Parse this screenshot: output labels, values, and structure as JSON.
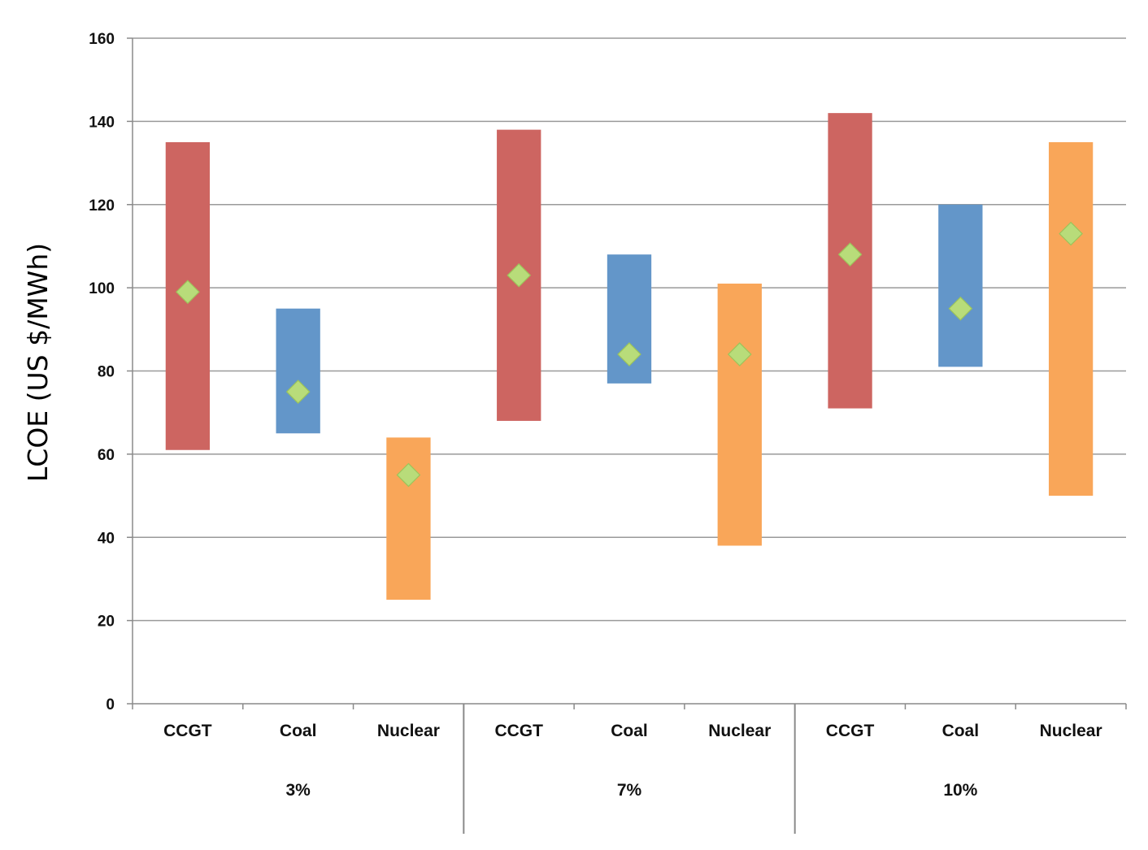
{
  "chart_data": {
    "type": "floating-bar",
    "title": "",
    "xlabel": "",
    "ylabel": "LCOE (US $/MWh)",
    "ylim": [
      0,
      160
    ],
    "yticks": [
      0,
      20,
      40,
      60,
      80,
      100,
      120,
      140,
      160
    ],
    "grid": true,
    "legend": "none",
    "groups": [
      {
        "label": "3%",
        "bars": [
          {
            "category": "CCGT",
            "low": 61,
            "high": 135,
            "median": 99,
            "color": "#cd6561"
          },
          {
            "category": "Coal",
            "low": 65,
            "high": 95,
            "median": 75,
            "color": "#6396c9"
          },
          {
            "category": "Nuclear",
            "low": 25,
            "high": 64,
            "median": 55,
            "color": "#f9a659"
          }
        ]
      },
      {
        "label": "7%",
        "bars": [
          {
            "category": "CCGT",
            "low": 68,
            "high": 138,
            "median": 103,
            "color": "#cd6561"
          },
          {
            "category": "Coal",
            "low": 77,
            "high": 108,
            "median": 84,
            "color": "#6396c9"
          },
          {
            "category": "Nuclear",
            "low": 38,
            "high": 101,
            "median": 84,
            "color": "#f9a659"
          }
        ]
      },
      {
        "label": "10%",
        "bars": [
          {
            "category": "CCGT",
            "low": 71,
            "high": 142,
            "median": 108,
            "color": "#cd6561"
          },
          {
            "category": "Coal",
            "low": 81,
            "high": 120,
            "median": 95,
            "color": "#6396c9"
          },
          {
            "category": "Nuclear",
            "low": 50,
            "high": 135,
            "median": 113,
            "color": "#f9a659"
          }
        ]
      }
    ],
    "marker_color": "#b8dc7a",
    "grid_color": "#9a9a9a"
  }
}
